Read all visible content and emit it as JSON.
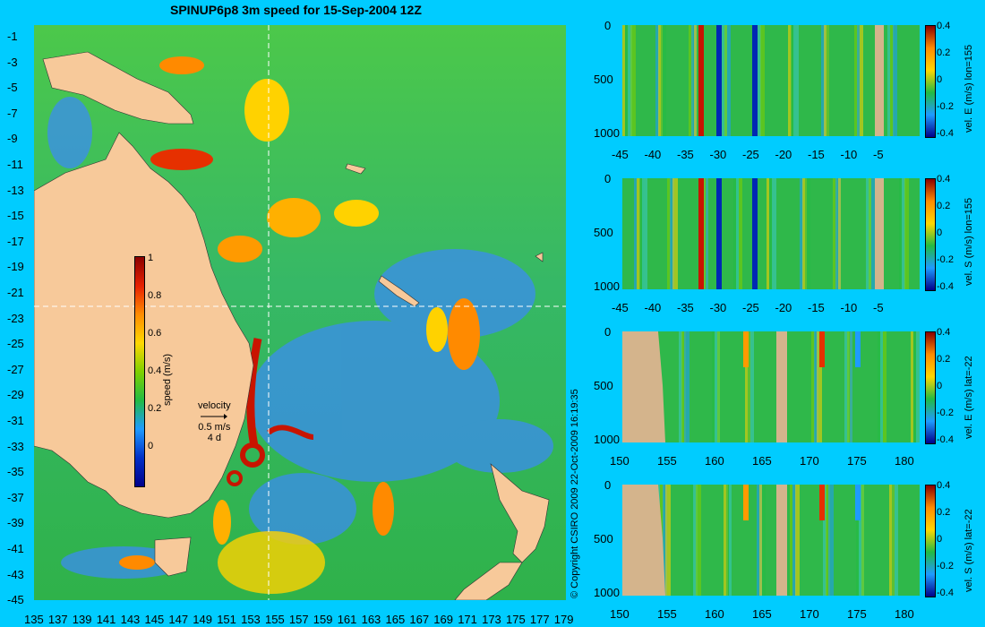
{
  "title": "SPINUP6p8 3m speed for 15-Sep-2004 12Z",
  "map": {
    "lon_ticks": [
      "135",
      "137",
      "139",
      "141",
      "143",
      "145",
      "147",
      "149",
      "151",
      "153",
      "155",
      "157",
      "159",
      "161",
      "163",
      "165",
      "167",
      "169",
      "171",
      "173",
      "175",
      "177",
      "179"
    ],
    "lat_ticks": [
      "-1",
      "-3",
      "-5",
      "-7",
      "-9",
      "-11",
      "-13",
      "-15",
      "-17",
      "-19",
      "-21",
      "-23",
      "-25",
      "-27",
      "-29",
      "-31",
      "-33",
      "-35",
      "-37",
      "-39",
      "-41",
      "-43",
      "-45"
    ],
    "section_lon": 155,
    "section_lat": -22,
    "colorbar": {
      "label": "speed (m/s)",
      "ticks": [
        "1",
        "0.8",
        "0.6",
        "0.4",
        "0.2",
        "0"
      ]
    },
    "velocity_key": {
      "title": "velocity",
      "speed": "0.5 m/s",
      "duration": "4 d"
    }
  },
  "sections": [
    {
      "id": "lon-e",
      "label": "vel. E (m/s) lon=155",
      "x_ticks": [
        "-45",
        "-40",
        "-35",
        "-30",
        "-25",
        "-20",
        "-15",
        "-10",
        "-5"
      ],
      "y_ticks": [
        "0",
        "500",
        "1000"
      ],
      "cbar_ticks": [
        "0.4",
        "0.2",
        "0",
        "-0.2",
        "-0.4"
      ]
    },
    {
      "id": "lon-s",
      "label": "vel. S (m/s) lon=155",
      "x_ticks": [
        "-45",
        "-40",
        "-35",
        "-30",
        "-25",
        "-20",
        "-15",
        "-10",
        "-5"
      ],
      "y_ticks": [
        "0",
        "500",
        "1000"
      ],
      "cbar_ticks": [
        "0.4",
        "0.2",
        "0",
        "-0.2",
        "-0.4"
      ]
    },
    {
      "id": "lat-e",
      "label": "vel. E (m/s) lat=-22",
      "x_ticks": [
        "150",
        "155",
        "160",
        "165",
        "170",
        "175",
        "180"
      ],
      "y_ticks": [
        "0",
        "500",
        "1000"
      ],
      "cbar_ticks": [
        "0.4",
        "0.2",
        "0",
        "-0.2",
        "-0.4"
      ]
    },
    {
      "id": "lat-s",
      "label": "vel. S (m/s) lat=-22",
      "x_ticks": [
        "150",
        "155",
        "160",
        "165",
        "170",
        "175",
        "180"
      ],
      "y_ticks": [
        "0",
        "500",
        "1000"
      ],
      "cbar_ticks": [
        "0.4",
        "0.2",
        "0",
        "-0.2",
        "-0.4"
      ]
    }
  ],
  "copyright": "© Copyright CSIRO 2009   22-Oct-2009 16:19:35",
  "colors": {
    "background": "#00ccff",
    "land": "#f7c99a",
    "ocean_mid": "#22bb44",
    "section_land": "#d4b48c"
  }
}
